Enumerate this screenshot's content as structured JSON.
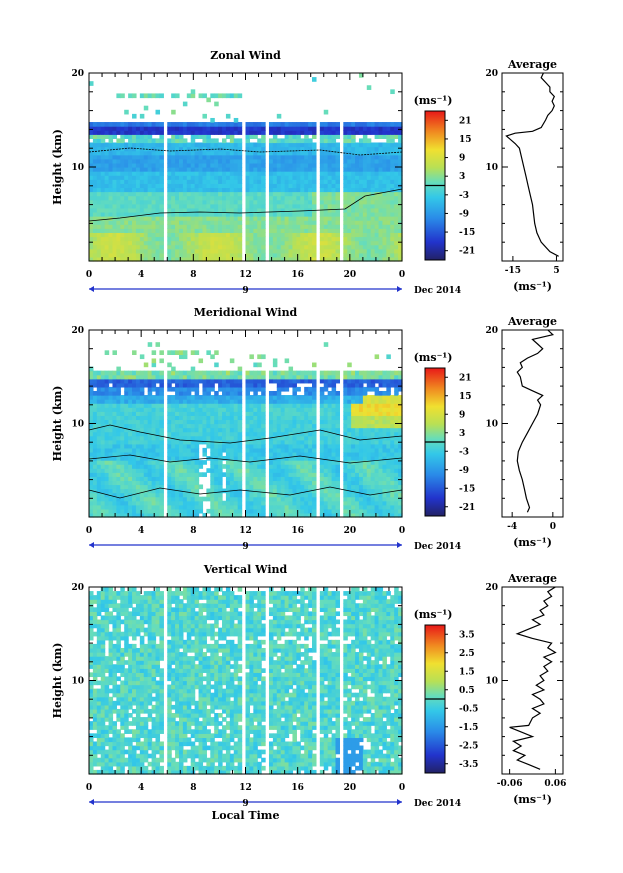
{
  "chart_data": [
    {
      "type": "heatmap",
      "title": "Zonal Wind",
      "ylabel": "Height (km)",
      "xlim": [
        0,
        24
      ],
      "ylim": [
        0,
        20
      ],
      "x_ticks": [
        "0",
        "4",
        "8",
        "12",
        "16",
        "20",
        "0"
      ],
      "y_ticks": [
        "20",
        "10"
      ],
      "date_label": "9",
      "month_label": "Dec 2014",
      "colorbar": {
        "unit": "(ms⁻¹)",
        "ticks": [
          "21",
          "15",
          "9",
          "3",
          "-3",
          "-9",
          "-15",
          "-21"
        ],
        "min": -24,
        "max": 24
      },
      "profile": {
        "title": "Average",
        "xlim": [
          -20,
          8
        ],
        "x_ticks": [
          "-15",
          "5"
        ],
        "xlabel": "(ms⁻¹)",
        "y_ticks": [
          "20",
          "10"
        ],
        "points": [
          [
            6,
            0.5
          ],
          [
            2,
            1
          ],
          [
            -2,
            2
          ],
          [
            -4,
            3
          ],
          [
            -5,
            4
          ],
          [
            -5.5,
            5
          ],
          [
            -6,
            6
          ],
          [
            -7,
            7
          ],
          [
            -8,
            8
          ],
          [
            -9,
            9
          ],
          [
            -10,
            10
          ],
          [
            -11,
            11
          ],
          [
            -12,
            12
          ],
          [
            -14,
            12.5
          ],
          [
            -18,
            13.3
          ],
          [
            -14,
            13.6
          ],
          [
            -6,
            13.8
          ],
          [
            -2,
            14.2
          ],
          [
            0,
            15
          ],
          [
            1,
            15.5
          ],
          [
            3,
            16
          ],
          [
            4,
            16.5
          ],
          [
            3,
            17
          ],
          [
            4,
            17.5
          ],
          [
            2,
            18
          ],
          [
            2,
            18.5
          ],
          [
            0,
            19
          ],
          [
            -2,
            19.5
          ],
          [
            -1,
            20
          ]
        ]
      }
    },
    {
      "type": "heatmap",
      "title": "Meridional Wind",
      "ylabel": "Height (km)",
      "xlim": [
        0,
        24
      ],
      "ylim": [
        0,
        20
      ],
      "x_ticks": [
        "0",
        "4",
        "8",
        "12",
        "16",
        "20",
        "0"
      ],
      "y_ticks": [
        "20",
        "10"
      ],
      "date_label": "9",
      "month_label": "Dec 2014",
      "colorbar": {
        "unit": "(ms⁻¹)",
        "ticks": [
          "21",
          "15",
          "9",
          "3",
          "-3",
          "-9",
          "-15",
          "-21"
        ],
        "min": -24,
        "max": 24
      },
      "profile": {
        "title": "Average",
        "xlim": [
          -5,
          1
        ],
        "x_ticks": [
          "-4",
          "0"
        ],
        "xlabel": "(ms⁻¹)",
        "y_ticks": [
          "20",
          "10"
        ],
        "points": [
          [
            -2.5,
            0.5
          ],
          [
            -2.3,
            1
          ],
          [
            -2.6,
            2
          ],
          [
            -2.8,
            3
          ],
          [
            -3,
            4
          ],
          [
            -3.3,
            5
          ],
          [
            -3.5,
            6
          ],
          [
            -3.4,
            7
          ],
          [
            -3,
            8
          ],
          [
            -2.5,
            9
          ],
          [
            -2,
            10
          ],
          [
            -1.5,
            11
          ],
          [
            -1.2,
            12
          ],
          [
            -1.5,
            12.5
          ],
          [
            -1,
            13
          ],
          [
            -2,
            13.5
          ],
          [
            -3,
            14
          ],
          [
            -3.2,
            15
          ],
          [
            -3.5,
            15.5
          ],
          [
            -3,
            16
          ],
          [
            -3.2,
            16.5
          ],
          [
            -2.5,
            17
          ],
          [
            -1.5,
            17.5
          ],
          [
            -1,
            18
          ],
          [
            -1.5,
            18.5
          ],
          [
            -2,
            19
          ],
          [
            0,
            19.5
          ],
          [
            -0.5,
            20
          ]
        ]
      }
    },
    {
      "type": "heatmap",
      "title": "Vertical Wind",
      "ylabel": "Height (km)",
      "xlabel": "Local Time",
      "xlim": [
        0,
        24
      ],
      "ylim": [
        0,
        20
      ],
      "x_ticks": [
        "0",
        "4",
        "8",
        "12",
        "16",
        "20",
        "0"
      ],
      "y_ticks": [
        "20",
        "10"
      ],
      "date_label": "9",
      "month_label": "Dec 2014",
      "colorbar": {
        "unit": "(ms⁻¹)",
        "ticks": [
          "3.5",
          "2.5",
          "1.5",
          "0.5",
          "-0.5",
          "-1.5",
          "-2.5",
          "-3.5"
        ],
        "min": -4,
        "max": 4
      },
      "profile": {
        "title": "Average",
        "xlim": [
          -0.08,
          0.08
        ],
        "x_ticks": [
          "-0.06",
          "0.06"
        ],
        "xlabel": "(ms⁻¹)",
        "y_ticks": [
          "20",
          "10"
        ],
        "points": [
          [
            0.02,
            0.5
          ],
          [
            -0.01,
            1
          ],
          [
            -0.04,
            1.5
          ],
          [
            -0.02,
            2
          ],
          [
            -0.05,
            2.5
          ],
          [
            -0.03,
            3
          ],
          [
            -0.05,
            3.5
          ],
          [
            0.0,
            4
          ],
          [
            -0.03,
            4.5
          ],
          [
            -0.06,
            5
          ],
          [
            -0.01,
            5.2
          ],
          [
            0.0,
            6
          ],
          [
            0.02,
            6.5
          ],
          [
            0.0,
            7
          ],
          [
            0.03,
            7.5
          ],
          [
            0.02,
            8
          ],
          [
            0.0,
            8.5
          ],
          [
            0.03,
            9
          ],
          [
            0.01,
            9.5
          ],
          [
            0.03,
            10
          ],
          [
            0.02,
            10.5
          ],
          [
            0.04,
            11
          ],
          [
            0.03,
            11.5
          ],
          [
            0.05,
            12
          ],
          [
            0.03,
            12.5
          ],
          [
            0.06,
            13
          ],
          [
            0.04,
            13.5
          ],
          [
            0.05,
            14
          ],
          [
            0.0,
            14.5
          ],
          [
            -0.04,
            15
          ],
          [
            -0.01,
            15.5
          ],
          [
            0.02,
            16
          ],
          [
            0.0,
            16.5
          ],
          [
            0.03,
            17
          ],
          [
            0.02,
            17.5
          ],
          [
            0.04,
            18
          ],
          [
            0.03,
            18.5
          ],
          [
            0.05,
            19
          ],
          [
            0.04,
            19.5
          ],
          [
            0.06,
            20
          ]
        ]
      }
    }
  ]
}
